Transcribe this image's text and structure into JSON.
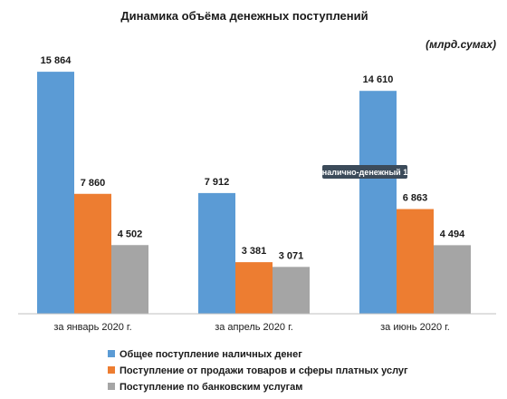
{
  "chart_data": {
    "type": "bar",
    "title": "Динамика объёма денежных поступлений",
    "unit_label": "(млрд.сумах)",
    "categories": [
      "за январь 2020 г.",
      "за апрель 2020 г.",
      "за июнь 2020 г."
    ],
    "series": [
      {
        "name": "Общее поступление наличных денег",
        "color": "#5b9bd5",
        "values": [
          15864,
          7912,
          14610
        ],
        "labels": [
          "15 864",
          "7 912",
          "14 610"
        ]
      },
      {
        "name": "Поступление от продажи товаров и сферы платных услуг",
        "color": "#ed7d31",
        "values": [
          7860,
          3381,
          6863
        ],
        "labels": [
          "7 860",
          "3 381",
          "6 863"
        ]
      },
      {
        "name": "Поступление по банковским услугам",
        "color": "#a5a5a5",
        "values": [
          4502,
          3071,
          4494
        ],
        "labels": [
          "4 502",
          "3 071",
          "4 494"
        ]
      }
    ],
    "ylim": [
      0,
      17000
    ],
    "grid": false,
    "legend_position": "bottom",
    "tooltip": "налично-денежный 1"
  }
}
